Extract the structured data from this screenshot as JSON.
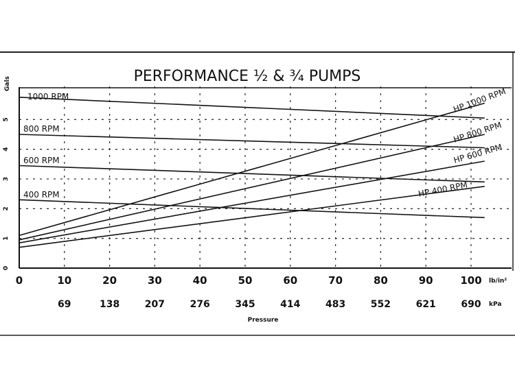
{
  "chart_data": {
    "type": "line",
    "title": "PERFORMANCE ½ & ¾ PUMPS",
    "xlabel": "Pressure",
    "ylabel": "Gals",
    "x_units_primary": "lb/in²",
    "x_units_secondary": "kPa",
    "x_ticks_primary": [
      "0",
      "10",
      "20",
      "30",
      "40",
      "50",
      "60",
      "70",
      "80",
      "90",
      "100"
    ],
    "x_ticks_secondary": [
      "69",
      "138",
      "207",
      "276",
      "345",
      "414",
      "483",
      "552",
      "621",
      "690"
    ],
    "y_ticks": [
      "0",
      "1",
      "2",
      "3",
      "4",
      "5"
    ],
    "xlim": [
      0,
      105
    ],
    "ylim": [
      0,
      6
    ],
    "grid": true,
    "series": [
      {
        "name": "1000 RPM",
        "x": [
          0,
          103
        ],
        "y": [
          5.75,
          5.05
        ]
      },
      {
        "name": "800 RPM",
        "x": [
          0,
          103
        ],
        "y": [
          4.5,
          4.05
        ]
      },
      {
        "name": "600 RPM",
        "x": [
          0,
          103
        ],
        "y": [
          3.45,
          2.9
        ]
      },
      {
        "name": "400 RPM",
        "x": [
          0,
          103
        ],
        "y": [
          2.3,
          1.7
        ]
      },
      {
        "name": "HP 1000 RPM",
        "x": [
          0,
          103
        ],
        "y": [
          1.1,
          5.55
        ]
      },
      {
        "name": "HP 800 RPM",
        "x": [
          0,
          103
        ],
        "y": [
          0.95,
          4.5
        ]
      },
      {
        "name": "HP 600 RPM",
        "x": [
          0,
          103
        ],
        "y": [
          0.85,
          3.6
        ]
      },
      {
        "name": "HP 400 RPM",
        "x": [
          0,
          103
        ],
        "y": [
          0.7,
          2.75
        ]
      }
    ]
  }
}
